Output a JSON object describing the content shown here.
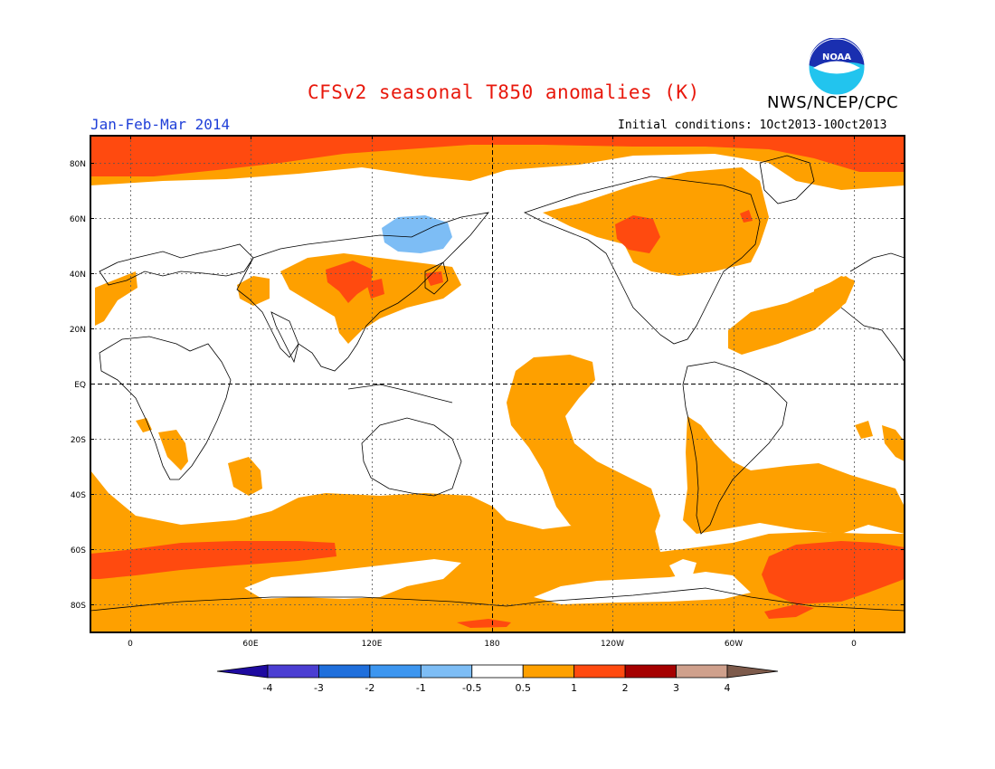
{
  "header": {
    "title": "CFSv2 seasonal T850 anomalies (K)",
    "agency": "NWS/NCEP/CPC",
    "period": "Jan-Feb-Mar 2014",
    "initial_conditions": "Initial conditions: 1Oct2013-10Oct2013",
    "logo_text": "NOAA"
  },
  "axes": {
    "lat_labels": [
      "80N",
      "60N",
      "40N",
      "20N",
      "EQ",
      "20S",
      "40S",
      "60S",
      "80S"
    ],
    "lon_labels": [
      "0",
      "60E",
      "120E",
      "180",
      "120W",
      "60W",
      "0"
    ]
  },
  "colorbar": {
    "labels": [
      "-4",
      "-3",
      "-2",
      "-1",
      "-0.5",
      "0.5",
      "1",
      "2",
      "3",
      "4"
    ],
    "colors": [
      "#1e0aa0",
      "#4b3ed2",
      "#1f6fdc",
      "#3c96f0",
      "#7dbdf5",
      "#ffffff",
      "#fea000",
      "#ff4a0f",
      "#a50000",
      "#cfa08c",
      "#7d5a4b"
    ]
  },
  "map": {
    "colors": {
      "ocean_bg": "#ffffff",
      "warm_light": "#fea000",
      "warm_strong": "#ff4a0f",
      "cool_light": "#7dbdf5",
      "coast": "#000000"
    }
  }
}
